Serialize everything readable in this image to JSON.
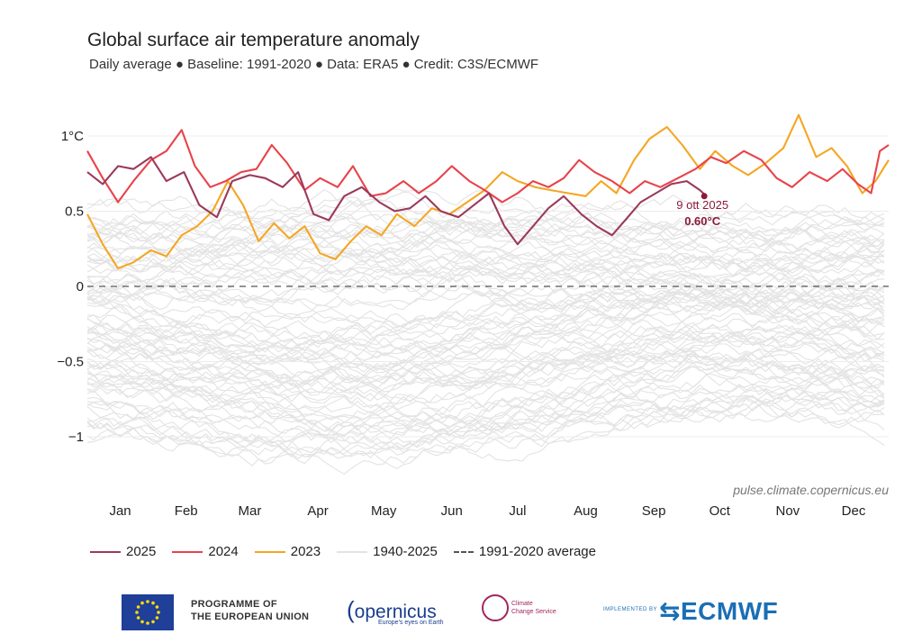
{
  "chart_data": {
    "type": "line",
    "title": "Global surface air temperature anomaly",
    "subtitle": "Daily average ● Baseline: 1991-2020 ● Data: ERA5 ● Credit: C3S/ECMWF",
    "xlabel": "",
    "ylabel": "",
    "x_unit": "day of year",
    "xlim": [
      1,
      366
    ],
    "ylim": [
      -1.2,
      1.12
    ],
    "y_ticks": [
      {
        "value": 1,
        "label": "1°C"
      },
      {
        "value": 0.5,
        "label": "0.5"
      },
      {
        "value": 0,
        "label": "0"
      },
      {
        "value": -0.5,
        "label": "−0.5"
      },
      {
        "value": -1,
        "label": "−1"
      }
    ],
    "x_ticks": [
      {
        "day": 16,
        "label": "Jan"
      },
      {
        "day": 46,
        "label": "Feb"
      },
      {
        "day": 75,
        "label": "Mar"
      },
      {
        "day": 106,
        "label": "Apr"
      },
      {
        "day": 136,
        "label": "May"
      },
      {
        "day": 167,
        "label": "Jun"
      },
      {
        "day": 197,
        "label": "Jul"
      },
      {
        "day": 228,
        "label": "Aug"
      },
      {
        "day": 259,
        "label": "Sep"
      },
      {
        "day": 289,
        "label": "Oct"
      },
      {
        "day": 320,
        "label": "Nov"
      },
      {
        "day": 350,
        "label": "Dec"
      }
    ],
    "grid": true,
    "baseline": {
      "value": 0,
      "label": "1991-2020 average"
    },
    "series": [
      {
        "name": "2025",
        "color": "#9b3a5a",
        "points": [
          [
            1,
            0.76
          ],
          [
            8,
            0.68
          ],
          [
            15,
            0.8
          ],
          [
            22,
            0.78
          ],
          [
            30,
            0.86
          ],
          [
            37,
            0.7
          ],
          [
            45,
            0.76
          ],
          [
            52,
            0.54
          ],
          [
            60,
            0.46
          ],
          [
            67,
            0.7
          ],
          [
            75,
            0.74
          ],
          [
            82,
            0.72
          ],
          [
            90,
            0.66
          ],
          [
            97,
            0.76
          ],
          [
            104,
            0.48
          ],
          [
            111,
            0.44
          ],
          [
            118,
            0.6
          ],
          [
            126,
            0.66
          ],
          [
            134,
            0.56
          ],
          [
            141,
            0.5
          ],
          [
            148,
            0.52
          ],
          [
            155,
            0.6
          ],
          [
            162,
            0.5
          ],
          [
            170,
            0.46
          ],
          [
            177,
            0.54
          ],
          [
            184,
            0.62
          ],
          [
            191,
            0.4
          ],
          [
            197,
            0.28
          ],
          [
            204,
            0.4
          ],
          [
            211,
            0.52
          ],
          [
            218,
            0.6
          ],
          [
            226,
            0.48
          ],
          [
            233,
            0.4
          ],
          [
            240,
            0.34
          ],
          [
            246,
            0.44
          ],
          [
            253,
            0.56
          ],
          [
            260,
            0.62
          ],
          [
            267,
            0.68
          ],
          [
            274,
            0.7
          ],
          [
            280,
            0.64
          ],
          [
            283,
            0.6
          ]
        ]
      },
      {
        "name": "2024",
        "color": "#e8434b",
        "points": [
          [
            1,
            0.9
          ],
          [
            8,
            0.72
          ],
          [
            15,
            0.56
          ],
          [
            22,
            0.7
          ],
          [
            30,
            0.84
          ],
          [
            37,
            0.9
          ],
          [
            44,
            1.04
          ],
          [
            50,
            0.8
          ],
          [
            57,
            0.66
          ],
          [
            64,
            0.7
          ],
          [
            71,
            0.76
          ],
          [
            78,
            0.78
          ],
          [
            85,
            0.94
          ],
          [
            92,
            0.82
          ],
          [
            100,
            0.64
          ],
          [
            107,
            0.72
          ],
          [
            115,
            0.66
          ],
          [
            122,
            0.8
          ],
          [
            130,
            0.6
          ],
          [
            137,
            0.62
          ],
          [
            145,
            0.7
          ],
          [
            152,
            0.62
          ],
          [
            160,
            0.7
          ],
          [
            167,
            0.8
          ],
          [
            175,
            0.7
          ],
          [
            182,
            0.64
          ],
          [
            190,
            0.56
          ],
          [
            197,
            0.62
          ],
          [
            204,
            0.7
          ],
          [
            211,
            0.66
          ],
          [
            218,
            0.72
          ],
          [
            225,
            0.84
          ],
          [
            232,
            0.76
          ],
          [
            240,
            0.7
          ],
          [
            248,
            0.62
          ],
          [
            255,
            0.7
          ],
          [
            262,
            0.66
          ],
          [
            270,
            0.72
          ],
          [
            278,
            0.78
          ],
          [
            285,
            0.86
          ],
          [
            292,
            0.82
          ],
          [
            300,
            0.9
          ],
          [
            308,
            0.84
          ],
          [
            315,
            0.72
          ],
          [
            322,
            0.66
          ],
          [
            330,
            0.76
          ],
          [
            338,
            0.7
          ],
          [
            345,
            0.78
          ],
          [
            352,
            0.68
          ],
          [
            358,
            0.62
          ],
          [
            362,
            0.9
          ],
          [
            366,
            0.94
          ]
        ]
      },
      {
        "name": "2023",
        "color": "#f5a623",
        "points": [
          [
            1,
            0.48
          ],
          [
            8,
            0.28
          ],
          [
            15,
            0.12
          ],
          [
            22,
            0.16
          ],
          [
            30,
            0.24
          ],
          [
            37,
            0.2
          ],
          [
            44,
            0.34
          ],
          [
            51,
            0.4
          ],
          [
            58,
            0.5
          ],
          [
            65,
            0.7
          ],
          [
            72,
            0.54
          ],
          [
            79,
            0.3
          ],
          [
            86,
            0.42
          ],
          [
            93,
            0.32
          ],
          [
            100,
            0.4
          ],
          [
            107,
            0.22
          ],
          [
            114,
            0.18
          ],
          [
            121,
            0.3
          ],
          [
            128,
            0.4
          ],
          [
            135,
            0.34
          ],
          [
            142,
            0.48
          ],
          [
            150,
            0.4
          ],
          [
            158,
            0.52
          ],
          [
            166,
            0.48
          ],
          [
            174,
            0.56
          ],
          [
            182,
            0.64
          ],
          [
            190,
            0.76
          ],
          [
            197,
            0.7
          ],
          [
            205,
            0.66
          ],
          [
            212,
            0.64
          ],
          [
            220,
            0.62
          ],
          [
            228,
            0.6
          ],
          [
            235,
            0.7
          ],
          [
            242,
            0.62
          ],
          [
            250,
            0.84
          ],
          [
            257,
            0.98
          ],
          [
            265,
            1.06
          ],
          [
            272,
            0.94
          ],
          [
            280,
            0.78
          ],
          [
            287,
            0.9
          ],
          [
            295,
            0.8
          ],
          [
            302,
            0.74
          ],
          [
            310,
            0.82
          ],
          [
            318,
            0.92
          ],
          [
            325,
            1.14
          ],
          [
            333,
            0.86
          ],
          [
            340,
            0.92
          ],
          [
            347,
            0.8
          ],
          [
            354,
            0.62
          ],
          [
            360,
            0.7
          ],
          [
            366,
            0.84
          ]
        ]
      }
    ],
    "background_series": {
      "name": "1940-2025",
      "color": "#e3e3e3",
      "count": 85,
      "range": [
        -1.25,
        0.7
      ]
    },
    "annotation": {
      "day": 282,
      "value": 0.6,
      "date_label": "9 ott 2025",
      "value_label": "0.60°C",
      "color": "#8b1a3a"
    },
    "source": "pulse.climate.copernicus.eu",
    "legend": [
      {
        "label": "2025",
        "color": "#9b3a5a",
        "style": "solid"
      },
      {
        "label": "2024",
        "color": "#e8434b",
        "style": "solid"
      },
      {
        "label": "2023",
        "color": "#f5a623",
        "style": "solid"
      },
      {
        "label": "1940-2025",
        "color": "#e3e3e3",
        "style": "solid"
      },
      {
        "label": "1991-2020 average",
        "color": "#555555",
        "style": "dashed"
      }
    ]
  },
  "logos": {
    "eu_line1": "PROGRAMME OF",
    "eu_line2": "THE EUROPEAN UNION",
    "copernicus": "opernicus",
    "copernicus_tagline": "Europe's eyes on Earth",
    "c3s_line1": "Climate",
    "c3s_line2": "Change Service",
    "implemented_by": "IMPLEMENTED BY",
    "ecmwf": "ECMWF"
  }
}
